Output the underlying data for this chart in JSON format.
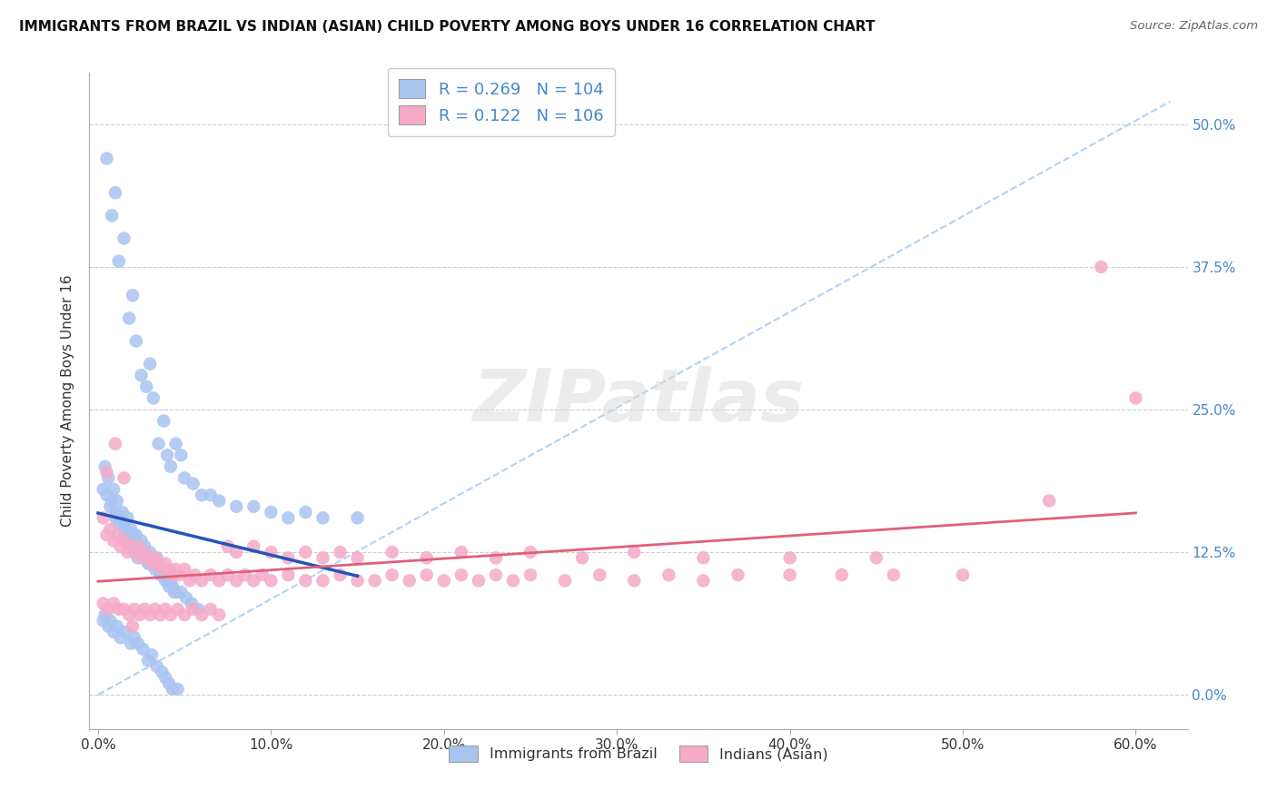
{
  "title": "IMMIGRANTS FROM BRAZIL VS INDIAN (ASIAN) CHILD POVERTY AMONG BOYS UNDER 16 CORRELATION CHART",
  "source": "Source: ZipAtlas.com",
  "xlim": [
    -0.005,
    0.63
  ],
  "ylim": [
    -0.03,
    0.545
  ],
  "xtick_vals": [
    0.0,
    0.1,
    0.2,
    0.3,
    0.4,
    0.5,
    0.6
  ],
  "ytick_vals": [
    0.0,
    0.125,
    0.25,
    0.375,
    0.5
  ],
  "brazil_R": 0.269,
  "brazil_N": 104,
  "india_R": 0.122,
  "india_N": 106,
  "brazil_color": "#aac4f0",
  "india_color": "#f5aac8",
  "brazil_line_color": "#2255bb",
  "india_line_color": "#e0607a",
  "diag_color": "#aaccee",
  "watermark_text": "ZIPatlas",
  "ylabel": "Child Poverty Among Boys Under 16",
  "legend_brazil": "Immigrants from Brazil",
  "legend_india": "Indians (Asian)",
  "right_tick_color": "#4488cc",
  "brazil_x": [
    0.003,
    0.004,
    0.005,
    0.006,
    0.007,
    0.008,
    0.009,
    0.01,
    0.01,
    0.011,
    0.012,
    0.013,
    0.014,
    0.015,
    0.015,
    0.016,
    0.017,
    0.018,
    0.019,
    0.02,
    0.02,
    0.021,
    0.022,
    0.023,
    0.024,
    0.025,
    0.025,
    0.026,
    0.027,
    0.028,
    0.029,
    0.03,
    0.03,
    0.031,
    0.032,
    0.033,
    0.034,
    0.035,
    0.035,
    0.036,
    0.037,
    0.038,
    0.039,
    0.04,
    0.04,
    0.041,
    0.042,
    0.043,
    0.044,
    0.045,
    0.005,
    0.008,
    0.01,
    0.012,
    0.015,
    0.018,
    0.02,
    0.022,
    0.025,
    0.028,
    0.03,
    0.032,
    0.035,
    0.038,
    0.04,
    0.042,
    0.045,
    0.048,
    0.05,
    0.055,
    0.06,
    0.065,
    0.07,
    0.08,
    0.09,
    0.1,
    0.11,
    0.12,
    0.13,
    0.15,
    0.003,
    0.004,
    0.006,
    0.007,
    0.009,
    0.011,
    0.013,
    0.016,
    0.019,
    0.021,
    0.023,
    0.026,
    0.029,
    0.031,
    0.034,
    0.037,
    0.039,
    0.041,
    0.043,
    0.046,
    0.048,
    0.051,
    0.054,
    0.058
  ],
  "brazil_y": [
    0.18,
    0.2,
    0.175,
    0.19,
    0.165,
    0.17,
    0.18,
    0.16,
    0.155,
    0.17,
    0.15,
    0.155,
    0.16,
    0.15,
    0.14,
    0.145,
    0.155,
    0.14,
    0.145,
    0.14,
    0.13,
    0.135,
    0.14,
    0.12,
    0.13,
    0.125,
    0.135,
    0.125,
    0.13,
    0.12,
    0.115,
    0.115,
    0.125,
    0.12,
    0.115,
    0.11,
    0.12,
    0.11,
    0.115,
    0.105,
    0.11,
    0.105,
    0.1,
    0.1,
    0.105,
    0.095,
    0.1,
    0.095,
    0.09,
    0.09,
    0.47,
    0.42,
    0.44,
    0.38,
    0.4,
    0.33,
    0.35,
    0.31,
    0.28,
    0.27,
    0.29,
    0.26,
    0.22,
    0.24,
    0.21,
    0.2,
    0.22,
    0.21,
    0.19,
    0.185,
    0.175,
    0.175,
    0.17,
    0.165,
    0.165,
    0.16,
    0.155,
    0.16,
    0.155,
    0.155,
    0.065,
    0.07,
    0.06,
    0.065,
    0.055,
    0.06,
    0.05,
    0.055,
    0.045,
    0.05,
    0.045,
    0.04,
    0.03,
    0.035,
    0.025,
    0.02,
    0.015,
    0.01,
    0.005,
    0.005,
    0.09,
    0.085,
    0.08,
    0.075
  ],
  "india_x": [
    0.003,
    0.005,
    0.007,
    0.009,
    0.011,
    0.013,
    0.015,
    0.017,
    0.019,
    0.021,
    0.023,
    0.025,
    0.027,
    0.029,
    0.031,
    0.033,
    0.035,
    0.037,
    0.039,
    0.041,
    0.043,
    0.045,
    0.047,
    0.05,
    0.053,
    0.056,
    0.06,
    0.065,
    0.07,
    0.075,
    0.08,
    0.085,
    0.09,
    0.095,
    0.1,
    0.11,
    0.12,
    0.13,
    0.14,
    0.15,
    0.16,
    0.17,
    0.18,
    0.19,
    0.2,
    0.21,
    0.22,
    0.23,
    0.24,
    0.25,
    0.27,
    0.29,
    0.31,
    0.33,
    0.35,
    0.37,
    0.4,
    0.43,
    0.46,
    0.5,
    0.003,
    0.006,
    0.009,
    0.012,
    0.015,
    0.018,
    0.021,
    0.024,
    0.027,
    0.03,
    0.033,
    0.036,
    0.039,
    0.042,
    0.046,
    0.05,
    0.055,
    0.06,
    0.065,
    0.07,
    0.075,
    0.08,
    0.09,
    0.1,
    0.11,
    0.12,
    0.13,
    0.14,
    0.15,
    0.17,
    0.19,
    0.21,
    0.23,
    0.25,
    0.28,
    0.31,
    0.35,
    0.4,
    0.45,
    0.55,
    0.58,
    0.6,
    0.005,
    0.01,
    0.015,
    0.02
  ],
  "india_y": [
    0.155,
    0.14,
    0.145,
    0.135,
    0.14,
    0.13,
    0.135,
    0.125,
    0.13,
    0.125,
    0.13,
    0.12,
    0.125,
    0.12,
    0.115,
    0.12,
    0.115,
    0.11,
    0.115,
    0.11,
    0.105,
    0.11,
    0.105,
    0.11,
    0.1,
    0.105,
    0.1,
    0.105,
    0.1,
    0.105,
    0.1,
    0.105,
    0.1,
    0.105,
    0.1,
    0.105,
    0.1,
    0.1,
    0.105,
    0.1,
    0.1,
    0.105,
    0.1,
    0.105,
    0.1,
    0.105,
    0.1,
    0.105,
    0.1,
    0.105,
    0.1,
    0.105,
    0.1,
    0.105,
    0.1,
    0.105,
    0.105,
    0.105,
    0.105,
    0.105,
    0.08,
    0.075,
    0.08,
    0.075,
    0.075,
    0.07,
    0.075,
    0.07,
    0.075,
    0.07,
    0.075,
    0.07,
    0.075,
    0.07,
    0.075,
    0.07,
    0.075,
    0.07,
    0.075,
    0.07,
    0.13,
    0.125,
    0.13,
    0.125,
    0.12,
    0.125,
    0.12,
    0.125,
    0.12,
    0.125,
    0.12,
    0.125,
    0.12,
    0.125,
    0.12,
    0.125,
    0.12,
    0.12,
    0.12,
    0.17,
    0.375,
    0.26,
    0.195,
    0.22,
    0.19,
    0.06
  ]
}
